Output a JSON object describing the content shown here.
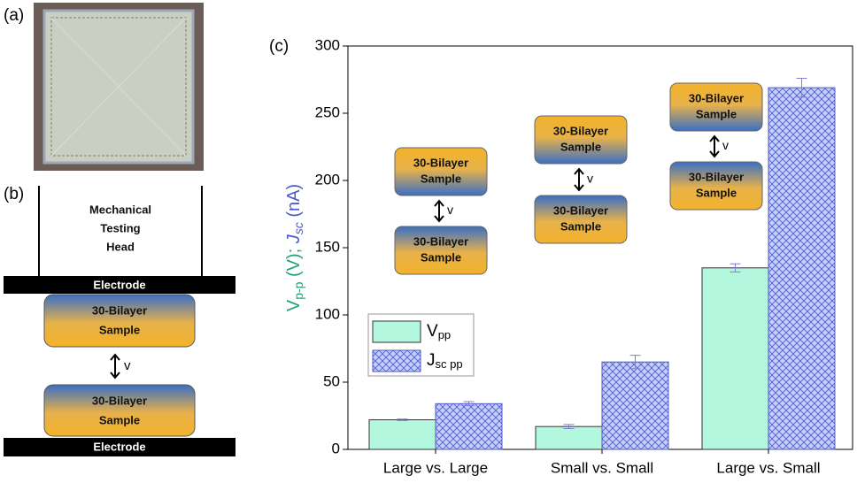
{
  "panel_labels": [
    "(a)",
    "(b)",
    "(c)"
  ],
  "diagram": {
    "head": [
      "Mechanical",
      "Testing",
      "Head"
    ],
    "electrode": "Electrode",
    "sample": [
      "30-Bilayer",
      "Sample"
    ],
    "motion": "v"
  },
  "chart_data": {
    "type": "bar",
    "y_label": [
      "V",
      "p-p",
      " (V); ",
      "J",
      "sc",
      " (nA)"
    ],
    "categories": [
      "Large vs. Large",
      "Small vs. Small",
      "Large vs. Small"
    ],
    "series": [
      {
        "name": "V",
        "name_sub": "pp",
        "color": "#b3f7de",
        "hatch": false,
        "values": [
          22,
          17,
          135
        ],
        "errors": [
          0.5,
          1.5,
          3
        ]
      },
      {
        "name": "J",
        "name_sub": "sc pp",
        "color": "#c5cdf5",
        "hatch": true,
        "values": [
          34,
          65,
          269
        ],
        "errors": [
          1.5,
          5,
          7
        ]
      }
    ],
    "ylim": [
      0,
      300
    ],
    "yticks": [
      0,
      50,
      100,
      150,
      200,
      250,
      300
    ],
    "legend": "lower left"
  }
}
